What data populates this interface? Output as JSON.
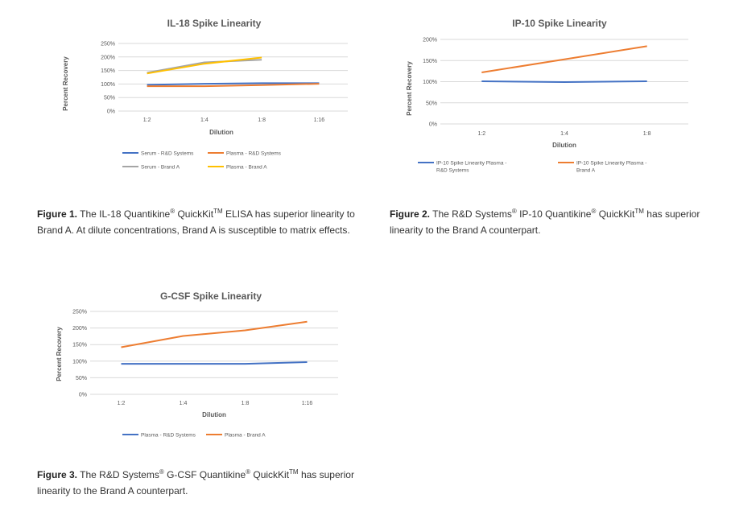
{
  "colors": {
    "blue": "#4472c4",
    "orange": "#ed7d31",
    "gray": "#a5a5a5",
    "yellow": "#ffc000",
    "grid": "#d9d9d9",
    "axis_text": "#595959"
  },
  "chart_data": [
    {
      "type": "line",
      "title": "IL-18 Spike Linearity",
      "xlabel": "Dilution",
      "ylabel": "Percent Recovery",
      "categories": [
        "1:2",
        "1:4",
        "1:8",
        "1:16"
      ],
      "yticks": [
        "0%",
        "50%",
        "100%",
        "150%",
        "200%",
        "250%"
      ],
      "ylim": [
        0,
        250
      ],
      "grid": true,
      "legend_position": "bottom",
      "series": [
        {
          "name": "Serum - R&D Systems",
          "color": "#4472c4",
          "values": [
            97,
            101,
            103,
            103
          ]
        },
        {
          "name": "Plasma - R&D Systems",
          "color": "#ed7d31",
          "values": [
            92,
            92,
            96,
            101
          ]
        },
        {
          "name": "Serum - Brand A",
          "color": "#a5a5a5",
          "values": [
            142,
            180,
            190,
            null
          ]
        },
        {
          "name": "Plasma - Brand A",
          "color": "#ffc000",
          "values": [
            139,
            175,
            198,
            null
          ]
        }
      ]
    },
    {
      "type": "line",
      "title": "IP-10 Spike Linearity",
      "xlabel": "Dilution",
      "ylabel": "Percent Recovery",
      "categories": [
        "1:2",
        "1:4",
        "1:8"
      ],
      "yticks": [
        "0%",
        "50%",
        "100%",
        "150%",
        "200%"
      ],
      "ylim": [
        0,
        200
      ],
      "grid": true,
      "legend_position": "bottom",
      "series": [
        {
          "name": "IP-10 Spike Linearity Plasma - R&D Systems",
          "name_lines": [
            "IP-10 Spike Linearity Plasma -",
            "R&D Systems"
          ],
          "color": "#4472c4",
          "values": [
            101,
            99,
            101
          ]
        },
        {
          "name": "IP-10 Spike Linearity Plasma - Brand A",
          "name_lines": [
            "IP-10 Spike Linearity Plasma -",
            "Brand A"
          ],
          "color": "#ed7d31",
          "values": [
            122,
            153,
            184
          ]
        }
      ]
    },
    {
      "type": "line",
      "title": "G-CSF Spike Linearity",
      "xlabel": "Dilution",
      "ylabel": "Percent Recovery",
      "categories": [
        "1:2",
        "1:4",
        "1:8",
        "1:16"
      ],
      "yticks": [
        "0%",
        "50%",
        "100%",
        "150%",
        "200%",
        "250%"
      ],
      "ylim": [
        0,
        250
      ],
      "grid": true,
      "legend_position": "bottom",
      "series": [
        {
          "name": "Plasma - R&D Systems",
          "color": "#4472c4",
          "values": [
            92,
            92,
            92,
            97
          ]
        },
        {
          "name": "Plasma - Brand A",
          "color": "#ed7d31",
          "values": [
            142,
            176,
            193,
            219
          ]
        }
      ]
    }
  ],
  "captions": [
    {
      "label": "Figure 1.",
      "parts": [
        "The IL-18 Quantikine",
        "®",
        " QuickKit",
        "TM",
        " ELISA has superior linearity to",
        "Brand A. At dilute concentrations, Brand A is susceptible to matrix effects."
      ]
    },
    {
      "label": "Figure 2.",
      "parts": [
        "The R&D Systems",
        "®",
        " IP-10 Quantikine",
        "®",
        " QuickKit",
        "TM",
        " has superior",
        "linearity to the Brand A counterpart."
      ]
    },
    {
      "label": "Figure 3.",
      "parts": [
        "The R&D Systems",
        "®",
        " G-CSF Quantikine",
        "®",
        " QuickKit",
        "TM",
        " has superior",
        "linearity to the Brand A counterpart."
      ]
    }
  ]
}
